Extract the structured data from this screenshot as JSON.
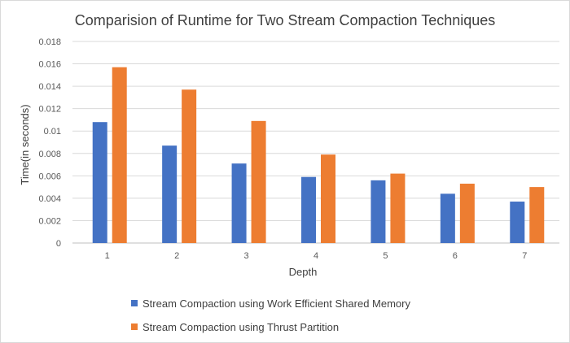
{
  "chart_data": {
    "type": "bar",
    "title": "Comparision of Runtime for Two Stream Compaction Techniques",
    "xlabel": "Depth",
    "ylabel": "Time(in seconds)",
    "categories": [
      "1",
      "2",
      "3",
      "4",
      "5",
      "6",
      "7"
    ],
    "ylim": [
      0,
      0.018
    ],
    "yticks": [
      "0",
      "0.002",
      "0.004",
      "0.006",
      "0.008",
      "0.01",
      "0.012",
      "0.014",
      "0.016",
      "0.018"
    ],
    "grid": true,
    "legend_position": "bottom",
    "series": [
      {
        "name": "Stream Compaction using Work Efficient Shared Memory",
        "color": "#4472c4",
        "values": [
          0.0108,
          0.0087,
          0.0071,
          0.0059,
          0.0056,
          0.0044,
          0.0037
        ]
      },
      {
        "name": "Stream Compaction using Thrust Partition",
        "color": "#ed7d31",
        "values": [
          0.0157,
          0.0137,
          0.0109,
          0.0079,
          0.0062,
          0.0053,
          0.005
        ]
      }
    ]
  }
}
